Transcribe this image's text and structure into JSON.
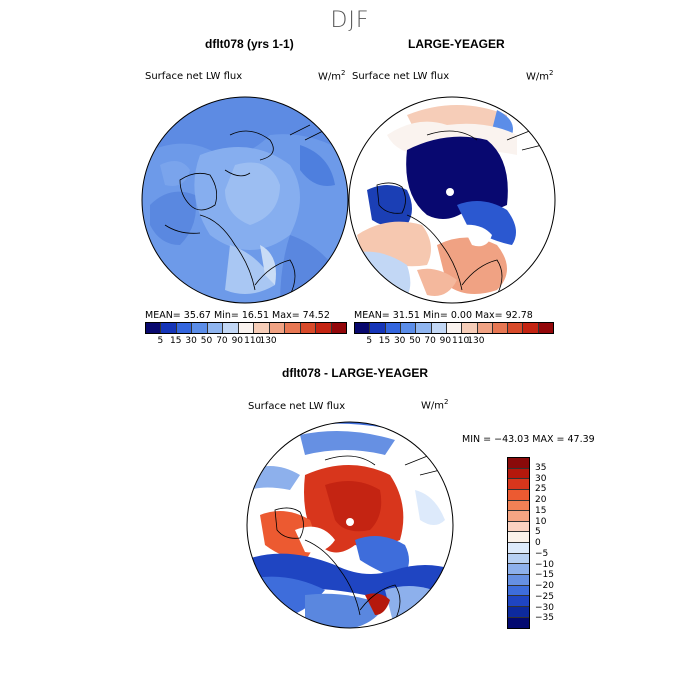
{
  "season": "DJF",
  "panels": {
    "model": {
      "title": "dflt078 (yrs 1-1)",
      "variable": "Surface net LW flux",
      "units_base": "W/m",
      "units_exp": "2",
      "stats": "MEAN=  35.67  Min=  16.51  Max=  74.52"
    },
    "obs": {
      "title": "LARGE-YEAGER",
      "variable": "Surface net LW flux",
      "units_base": "W/m",
      "units_exp": "2",
      "stats": "MEAN=  31.51  Min=   0.00  Max=  92.78"
    },
    "diff": {
      "title": "dflt078 - LARGE-YEAGER",
      "variable": "Surface net LW flux",
      "units_base": "W/m",
      "units_exp": "2",
      "stats": "MIN = −43.03 MAX =  47.39"
    }
  },
  "colorbar_abs": {
    "colors": [
      "#08086e",
      "#1535b8",
      "#3466de",
      "#5b8de8",
      "#8fb5f0",
      "#c2d7f5",
      "#faf3ef",
      "#f6cdb8",
      "#f0a283",
      "#e77753",
      "#d84a2a",
      "#c42412",
      "#93070a"
    ],
    "ticks": [
      "5",
      "15",
      "30",
      "50",
      "70",
      "90",
      "110",
      "130"
    ]
  },
  "colorbar_diff": {
    "colors": [
      "#8a0a0a",
      "#b5180c",
      "#d8361c",
      "#ec5a31",
      "#f28155",
      "#f6a583",
      "#fbd2c0",
      "#fbf2ea",
      "#ddeafb",
      "#b7d0f3",
      "#8db0ec",
      "#6690e3",
      "#3e6ddb",
      "#1f45c2",
      "#0d2a9e",
      "#030970"
    ],
    "ticks": [
      "35",
      "30",
      "25",
      "20",
      "15",
      "10",
      "5",
      "0",
      "−5",
      "−10",
      "−15",
      "−20",
      "−25",
      "−30",
      "−35"
    ]
  }
}
